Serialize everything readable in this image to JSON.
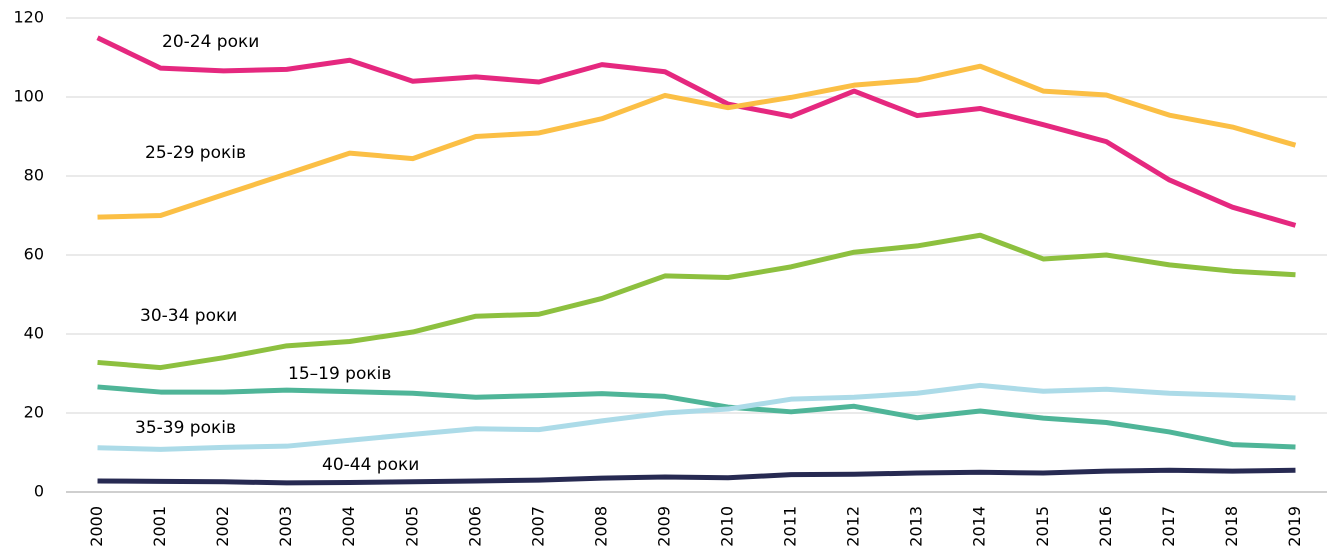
{
  "chart_data": {
    "type": "line",
    "x": [
      "2000",
      "2001",
      "2002",
      "2003",
      "2004",
      "2005",
      "2006",
      "2007",
      "2008",
      "2009",
      "2010",
      "2011",
      "2012",
      "2013",
      "2014",
      "2015",
      "2016",
      "2017",
      "2018",
      "2019"
    ],
    "series": [
      {
        "name": "20-24 роки",
        "color": "#e5287f",
        "values": [
          115,
          107.3,
          106.6,
          107,
          109.3,
          104,
          105.1,
          103.8,
          108.2,
          106.4,
          98.2,
          95.1,
          101.5,
          95.3,
          97.1,
          93,
          88.7,
          79,
          72.1,
          67.5
        ]
      },
      {
        "name": "25-29 років",
        "color": "#fbbf45",
        "values": [
          69.6,
          70,
          75.3,
          80.5,
          85.8,
          84.4,
          90,
          90.9,
          94.5,
          100.4,
          97.3,
          99.9,
          103,
          104.3,
          107.8,
          101.5,
          100.5,
          95.4,
          92.4,
          87.8
        ]
      },
      {
        "name": "30-34 роки",
        "color": "#8dc03f",
        "values": [
          32.8,
          31.5,
          34,
          37,
          38.1,
          40.5,
          44.5,
          45,
          49,
          54.7,
          54.3,
          57,
          60.7,
          62.3,
          65,
          59,
          60,
          57.5,
          55.9,
          55
        ]
      },
      {
        "name": "15–19 років",
        "color": "#4fb598",
        "values": [
          26.6,
          25.3,
          25.3,
          25.8,
          25.4,
          25,
          24,
          24.4,
          24.9,
          24.2,
          21.5,
          20.3,
          21.7,
          18.8,
          20.5,
          18.7,
          17.6,
          15.2,
          12,
          11.4
        ]
      },
      {
        "name": "35-39 років",
        "color": "#acdbe8",
        "values": [
          11.2,
          10.8,
          11.3,
          11.6,
          13.1,
          14.6,
          16,
          15.8,
          18,
          20,
          21,
          23.5,
          24,
          25,
          27,
          25.5,
          26,
          25,
          24.5,
          23.8
        ]
      },
      {
        "name": "40-44 роки",
        "color": "#272a52",
        "values": [
          2.8,
          2.7,
          2.6,
          2.3,
          2.4,
          2.6,
          2.8,
          3,
          3.5,
          3.8,
          3.6,
          4.4,
          4.5,
          4.8,
          5,
          4.8,
          5.3,
          5.5,
          5.3,
          5.5
        ]
      }
    ],
    "ylim": [
      0,
      120
    ],
    "yticks": [
      0,
      20,
      40,
      60,
      80,
      100,
      120
    ],
    "grid": true
  }
}
